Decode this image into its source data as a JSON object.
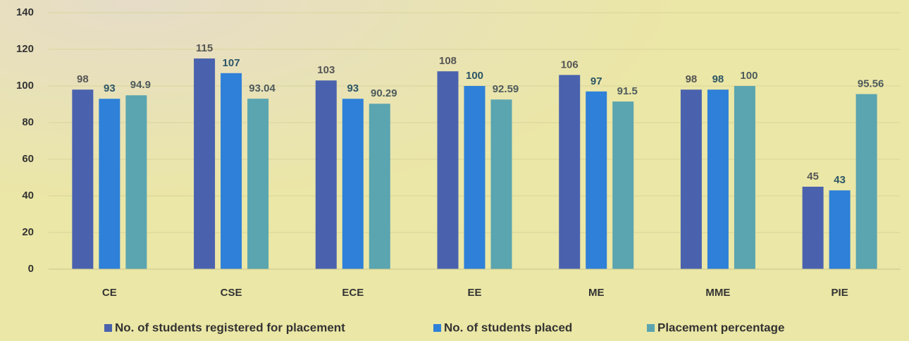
{
  "chart_data": {
    "type": "bar",
    "categories": [
      "CE",
      "CSE",
      "ECE",
      "EE",
      "ME",
      "MME",
      "PIE"
    ],
    "series": [
      {
        "name": "No. of students registered for placement",
        "color": "#4a62ae",
        "label_color": "#555555",
        "values": [
          98,
          115,
          103,
          108,
          106,
          98,
          45
        ]
      },
      {
        "name": "No. of students placed",
        "color": "#2e80d8",
        "label_color": "#2b5566",
        "values": [
          93,
          107,
          93,
          100,
          97,
          98,
          43
        ]
      },
      {
        "name": "Placement percentage",
        "color": "#5aa5b0",
        "label_color": "#4d5a5c",
        "values": [
          94.9,
          93.04,
          90.29,
          92.59,
          91.5,
          100,
          95.56
        ]
      }
    ],
    "ylim": [
      0,
      140
    ],
    "yticks": [
      0,
      20,
      40,
      60,
      80,
      100,
      120,
      140
    ],
    "grid": true,
    "legend": "bottom"
  }
}
